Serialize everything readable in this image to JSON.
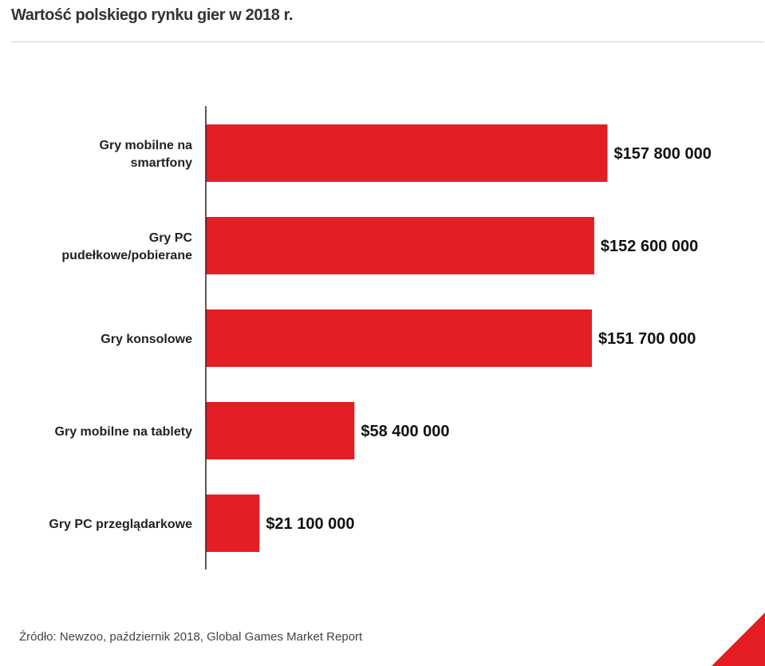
{
  "title": "Wartość polskiego rynku gier w 2018 r.",
  "source": "Źródło: Newzoo, październik 2018, Global Games Market Report",
  "colors": {
    "bar": "#e31e24",
    "axis": "#222222",
    "corner_accent": "#e31e24"
  },
  "chart_data": {
    "type": "bar",
    "orientation": "horizontal",
    "categories": [
      [
        "Gry mobilne na",
        "smartfony"
      ],
      [
        "Gry PC",
        "pudełkowe/pobierane"
      ],
      [
        "Gry konsolowe"
      ],
      [
        "Gry mobilne na tablety"
      ],
      [
        "Gry PC przeglądarkowe"
      ]
    ],
    "values": [
      157800000,
      152600000,
      151700000,
      58400000,
      21100000
    ],
    "value_labels": [
      "$157 800 000",
      "$152 600 000",
      "$151 700 000",
      "$58 400 000",
      "$21 100 000"
    ],
    "xlim": [
      0,
      215000000
    ],
    "grid": false,
    "legend": "none"
  }
}
